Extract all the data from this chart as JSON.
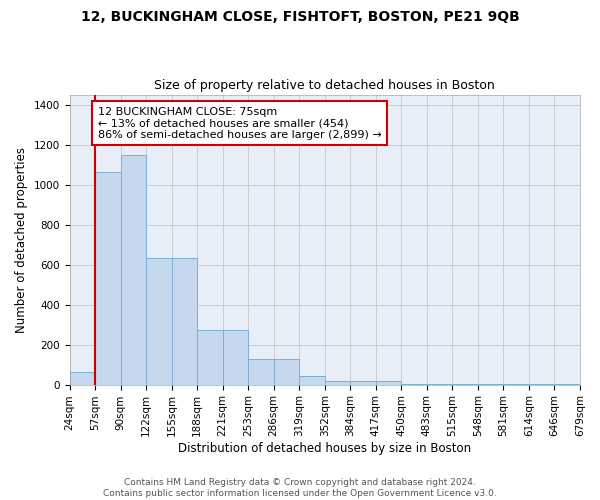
{
  "title": "12, BUCKINGHAM CLOSE, FISHTOFT, BOSTON, PE21 9QB",
  "subtitle": "Size of property relative to detached houses in Boston",
  "xlabel": "Distribution of detached houses by size in Boston",
  "ylabel": "Number of detached properties",
  "bar_values": [
    65,
    1065,
    1150,
    635,
    635,
    275,
    275,
    130,
    130,
    45,
    20,
    20,
    20,
    5,
    5,
    5,
    5,
    5,
    5,
    5
  ],
  "categories": [
    "24sqm",
    "57sqm",
    "90sqm",
    "122sqm",
    "155sqm",
    "188sqm",
    "221sqm",
    "253sqm",
    "286sqm",
    "319sqm",
    "352sqm",
    "384sqm",
    "417sqm",
    "450sqm",
    "483sqm",
    "515sqm",
    "548sqm",
    "581sqm",
    "614sqm",
    "646sqm",
    "679sqm"
  ],
  "bar_color": "#c5d8ee",
  "bar_edge_color": "#7bafd4",
  "vline_color": "#cc0000",
  "annotation_box_text": "12 BUCKINGHAM CLOSE: 75sqm\n← 13% of detached houses are smaller (454)\n86% of semi-detached houses are larger (2,899) →",
  "annotation_box_color": "#cc0000",
  "annotation_box_facecolor": "white",
  "ylim": [
    0,
    1450
  ],
  "yticks": [
    0,
    200,
    400,
    600,
    800,
    1000,
    1200,
    1400
  ],
  "grid_color": "#cccccc",
  "background_color": "#e8eef8",
  "footer_text": "Contains HM Land Registry data © Crown copyright and database right 2024.\nContains public sector information licensed under the Open Government Licence v3.0.",
  "title_fontsize": 10,
  "subtitle_fontsize": 9,
  "xlabel_fontsize": 8.5,
  "ylabel_fontsize": 8.5,
  "tick_fontsize": 7.5,
  "annotation_fontsize": 8,
  "footer_fontsize": 6.5
}
